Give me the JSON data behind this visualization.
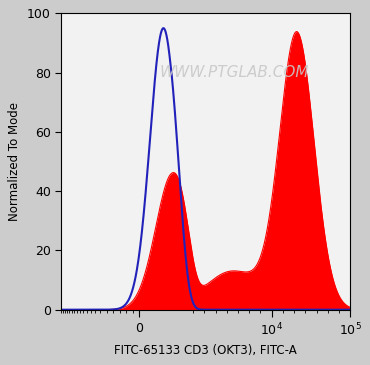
{
  "xlabel": "FITC-65133 CD3 (OKT3), FITC-A",
  "ylabel": "Normalized To Mode",
  "watermark": "WWW.PTGLAB.COM",
  "ylim": [
    0,
    100
  ],
  "yticks": [
    0,
    20,
    40,
    60,
    80,
    100
  ],
  "blue_color": "#2222bb",
  "red_color": "#ff0000",
  "background_color": "#f2f2f2",
  "fig_bg_color": "#cccccc",
  "xlabel_fontsize": 8.5,
  "ylabel_fontsize": 8.5,
  "tick_fontsize": 9,
  "watermark_color": "#c8c8c8",
  "watermark_fontsize": 11,
  "watermark_alpha": 0.9
}
